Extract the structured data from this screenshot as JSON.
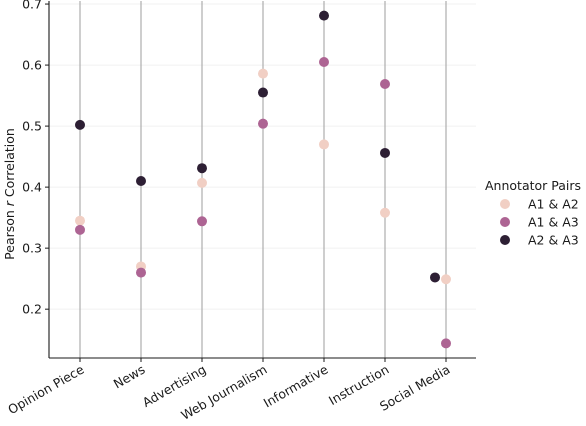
{
  "chart_data": {
    "type": "scatter",
    "title": "",
    "xlabel": "",
    "ylabel_prefix": "Pearson ",
    "ylabel_italic": "r",
    "ylabel_suffix": " Correlation",
    "categories": [
      "Opinion Piece",
      "News",
      "Advertising",
      "Web Journalism",
      "Informative",
      "Instruction",
      "Social Media"
    ],
    "ylim": [
      0.12,
      0.705
    ],
    "yticks": [
      0.2,
      0.3,
      0.4,
      0.5,
      0.6,
      0.7
    ],
    "ytick_labels": [
      "0.2",
      "0.3",
      "0.4",
      "0.5",
      "0.6",
      "0.7"
    ],
    "grid": "vertical lines at categories, faint horizontal",
    "legend": {
      "title": "Annotator Pairs",
      "placement": "right"
    },
    "series": [
      {
        "name": "A1 & A2",
        "color": "#f1cfc4",
        "values": [
          0.345,
          0.27,
          0.407,
          0.586,
          0.47,
          0.358,
          0.249
        ]
      },
      {
        "name": "A1 & A3",
        "color": "#ad6493",
        "values": [
          0.33,
          0.26,
          0.344,
          0.504,
          0.605,
          0.569,
          0.144
        ]
      },
      {
        "name": "A2 & A3",
        "color": "#2d1f34",
        "values": [
          0.502,
          0.41,
          0.431,
          0.555,
          0.681,
          0.456,
          0.252
        ]
      }
    ]
  }
}
